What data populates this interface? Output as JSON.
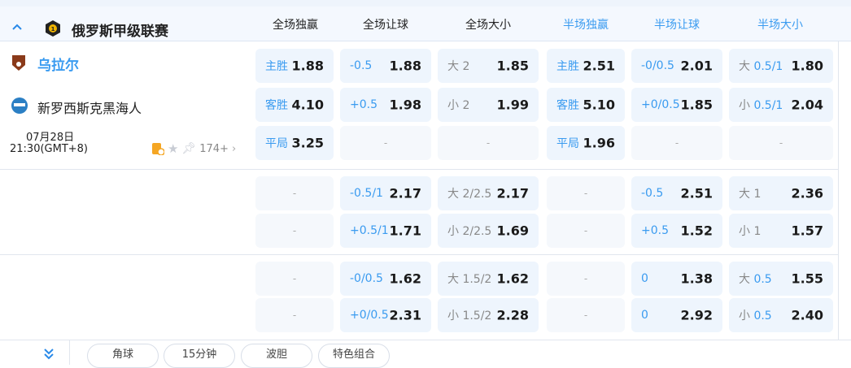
{
  "league": {
    "name": "俄罗斯甲级联赛"
  },
  "headers": [
    {
      "label": "全场独赢",
      "blue": false
    },
    {
      "label": "全场让球",
      "blue": false
    },
    {
      "label": "全场大小",
      "blue": false
    },
    {
      "label": "半场独赢",
      "blue": true
    },
    {
      "label": "半场让球",
      "blue": true
    },
    {
      "label": "半场大小",
      "blue": true
    }
  ],
  "match": {
    "home": "乌拉尔",
    "away": "新罗西斯克黑海人",
    "date": "07月28日",
    "time": "21:30(GMT+8)",
    "more": "174+"
  },
  "groups": [
    [
      [
        {
          "l": "主胜",
          "v": "1.88"
        },
        {
          "l": "-0.5",
          "v": "1.88"
        },
        {
          "p": "大",
          "l": "2",
          "v": "1.85",
          "gray": true
        },
        {
          "l": "主胜",
          "v": "2.51"
        },
        {
          "l": "-0/0.5",
          "v": "2.01"
        },
        {
          "p": "大",
          "l": "0.5/1",
          "v": "1.80"
        }
      ],
      [
        {
          "l": "客胜",
          "v": "4.10"
        },
        {
          "l": "+0.5",
          "v": "1.98"
        },
        {
          "p": "小",
          "l": "2",
          "v": "1.99",
          "gray": true
        },
        {
          "l": "客胜",
          "v": "5.10"
        },
        {
          "l": "+0/0.5",
          "v": "1.85"
        },
        {
          "p": "小",
          "l": "0.5/1",
          "v": "2.04"
        }
      ],
      [
        {
          "l": "平局",
          "v": "3.25"
        },
        {
          "d": "-"
        },
        {
          "d": "-"
        },
        {
          "l": "平局",
          "v": "1.96"
        },
        {
          "d": "-"
        },
        {
          "d": "-"
        }
      ]
    ],
    [
      [
        {
          "d": "-"
        },
        {
          "l": "-0.5/1",
          "v": "2.17"
        },
        {
          "p": "大",
          "l": "2/2.5",
          "v": "2.17",
          "gray": true
        },
        {
          "d": "-"
        },
        {
          "l": "-0.5",
          "v": "2.51"
        },
        {
          "p": "大",
          "l": "1",
          "v": "2.36",
          "gray": true
        }
      ],
      [
        {
          "d": "-"
        },
        {
          "l": "+0.5/1",
          "v": "1.71"
        },
        {
          "p": "小",
          "l": "2/2.5",
          "v": "1.69",
          "gray": true
        },
        {
          "d": "-"
        },
        {
          "l": "+0.5",
          "v": "1.52"
        },
        {
          "p": "小",
          "l": "1",
          "v": "1.57",
          "gray": true
        }
      ]
    ],
    [
      [
        {
          "d": "-"
        },
        {
          "l": "-0/0.5",
          "v": "1.62"
        },
        {
          "p": "大",
          "l": "1.5/2",
          "v": "1.62",
          "gray": true
        },
        {
          "d": "-"
        },
        {
          "l": "0",
          "v": "1.38"
        },
        {
          "p": "大",
          "l": "0.5",
          "v": "1.55"
        }
      ],
      [
        {
          "d": "-"
        },
        {
          "l": "+0/0.5",
          "v": "2.31"
        },
        {
          "p": "小",
          "l": "1.5/2",
          "v": "2.28",
          "gray": true
        },
        {
          "d": "-"
        },
        {
          "l": "0",
          "v": "2.92"
        },
        {
          "p": "小",
          "l": "0.5",
          "v": "2.40"
        }
      ]
    ]
  ],
  "footer": {
    "tabs": [
      "角球",
      "15分钟",
      "波胆",
      "特色组合"
    ]
  },
  "colors": {
    "accent": "#3a9bf0",
    "cell_bg": "#eef5fd",
    "header_bg": "#f4f8fe"
  }
}
